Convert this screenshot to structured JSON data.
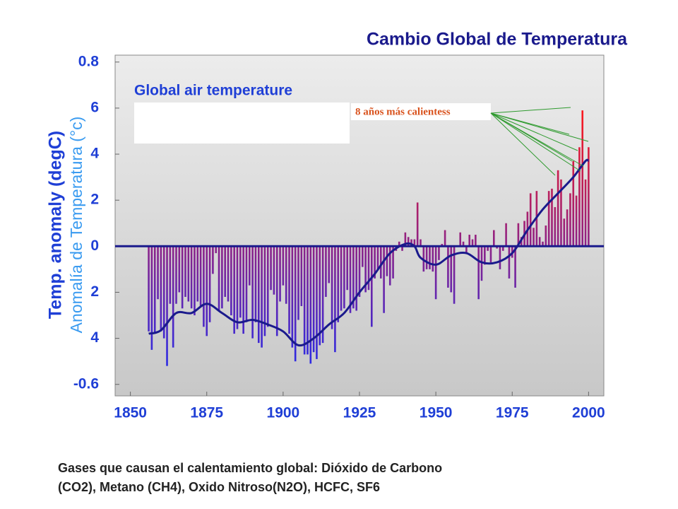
{
  "chart_data": {
    "type": "bar",
    "title": "Cambio Global de Temperatura",
    "inner_title": "Global air temperature",
    "y_label": "Temp. anomaly (degC)",
    "y_label_overlay": "Anomalía de Temperatura (°c)",
    "annotation": "8 años más calientess",
    "caption": [
      "Gases que causan el calentamiento global: Dióxido de Carbono",
      "(CO2), Metano (CH4), Oxido Nitroso(N2O), HCFC, SF6"
    ],
    "xlim": [
      1845,
      2005
    ],
    "ylim": [
      -0.65,
      0.83
    ],
    "xticks": [
      1850,
      1875,
      1900,
      1925,
      1950,
      1975,
      2000
    ],
    "yticks": [
      0.8,
      {
        "value": 0.6,
        "label": "6"
      },
      {
        "value": 0.4,
        "label": "4"
      },
      {
        "value": 0.2,
        "label": "2"
      },
      0,
      {
        "value": -0.2,
        "label": "2"
      },
      {
        "value": -0.4,
        "label": "4"
      },
      -0.6
    ],
    "bar_colors": [
      "#ff1a1a",
      "#2a2ae6"
    ],
    "line_color": "#1a1a8c",
    "x": [
      1856,
      1857,
      1858,
      1859,
      1860,
      1861,
      1862,
      1863,
      1864,
      1865,
      1866,
      1867,
      1868,
      1869,
      1870,
      1871,
      1872,
      1873,
      1874,
      1875,
      1876,
      1877,
      1878,
      1879,
      1880,
      1881,
      1882,
      1883,
      1884,
      1885,
      1886,
      1887,
      1888,
      1889,
      1890,
      1891,
      1892,
      1893,
      1894,
      1895,
      1896,
      1897,
      1898,
      1899,
      1900,
      1901,
      1902,
      1903,
      1904,
      1905,
      1906,
      1907,
      1908,
      1909,
      1910,
      1911,
      1912,
      1913,
      1914,
      1915,
      1916,
      1917,
      1918,
      1919,
      1920,
      1921,
      1922,
      1923,
      1924,
      1925,
      1926,
      1927,
      1928,
      1929,
      1930,
      1931,
      1932,
      1933,
      1934,
      1935,
      1936,
      1937,
      1938,
      1939,
      1940,
      1941,
      1942,
      1943,
      1944,
      1945,
      1946,
      1947,
      1948,
      1949,
      1950,
      1951,
      1952,
      1953,
      1954,
      1955,
      1956,
      1957,
      1958,
      1959,
      1960,
      1961,
      1962,
      1963,
      1964,
      1965,
      1966,
      1967,
      1968,
      1969,
      1970,
      1971,
      1972,
      1973,
      1974,
      1975,
      1976,
      1977,
      1978,
      1979,
      1980,
      1981,
      1982,
      1983,
      1984,
      1985,
      1986,
      1987,
      1988,
      1989,
      1990,
      1991,
      1992,
      1993,
      1994,
      1995,
      1996,
      1997,
      1998,
      1999,
      2000
    ],
    "values": [
      -0.37,
      -0.45,
      -0.38,
      -0.23,
      -0.37,
      -0.4,
      -0.52,
      -0.25,
      -0.44,
      -0.25,
      -0.2,
      -0.27,
      -0.22,
      -0.24,
      -0.27,
      -0.3,
      -0.24,
      -0.26,
      -0.35,
      -0.39,
      -0.33,
      -0.12,
      -0.03,
      -0.28,
      -0.27,
      -0.22,
      -0.24,
      -0.3,
      -0.38,
      -0.36,
      -0.31,
      -0.38,
      -0.33,
      -0.17,
      -0.4,
      -0.33,
      -0.42,
      -0.44,
      -0.39,
      -0.35,
      -0.19,
      -0.21,
      -0.39,
      -0.24,
      -0.17,
      -0.25,
      -0.38,
      -0.44,
      -0.5,
      -0.32,
      -0.26,
      -0.47,
      -0.47,
      -0.51,
      -0.46,
      -0.49,
      -0.43,
      -0.42,
      -0.22,
      -0.16,
      -0.36,
      -0.46,
      -0.33,
      -0.28,
      -0.27,
      -0.19,
      -0.29,
      -0.27,
      -0.28,
      -0.22,
      -0.09,
      -0.2,
      -0.19,
      -0.35,
      -0.14,
      -0.1,
      -0.14,
      -0.29,
      -0.13,
      -0.17,
      -0.14,
      -0.02,
      0.02,
      -0.02,
      0.06,
      0.04,
      0.03,
      0.03,
      0.19,
      0.03,
      -0.11,
      -0.1,
      -0.1,
      -0.11,
      -0.23,
      -0.06,
      0.01,
      0.07,
      -0.18,
      -0.2,
      -0.25,
      0.0,
      0.06,
      0.02,
      -0.03,
      0.05,
      0.03,
      0.05,
      -0.23,
      -0.15,
      -0.08,
      -0.02,
      -0.07,
      0.07,
      -0.01,
      -0.1,
      -0.02,
      0.1,
      -0.14,
      -0.05,
      -0.18,
      0.1,
      0.04,
      0.11,
      0.15,
      0.23,
      0.08,
      0.24,
      0.04,
      0.02,
      0.09,
      0.24,
      0.25,
      0.17,
      0.33,
      0.29,
      0.12,
      0.16,
      0.23,
      0.37,
      0.22,
      0.43,
      0.59,
      0.29,
      0.43
    ],
    "smooth": {
      "x": [
        1856,
        1860,
        1865,
        1870,
        1875,
        1880,
        1885,
        1890,
        1895,
        1900,
        1905,
        1910,
        1915,
        1920,
        1925,
        1930,
        1935,
        1940,
        1943,
        1945,
        1950,
        1955,
        1960,
        1965,
        1970,
        1975,
        1980,
        1985,
        1990,
        1995,
        1999,
        2000
      ],
      "values": [
        -0.38,
        -0.365,
        -0.29,
        -0.29,
        -0.25,
        -0.29,
        -0.33,
        -0.32,
        -0.34,
        -0.37,
        -0.43,
        -0.4,
        -0.34,
        -0.29,
        -0.2,
        -0.12,
        -0.03,
        0.01,
        0.0,
        -0.05,
        -0.08,
        -0.04,
        -0.03,
        -0.07,
        -0.07,
        -0.03,
        0.07,
        0.16,
        0.23,
        0.3,
        0.37,
        0.37
      ]
    }
  }
}
